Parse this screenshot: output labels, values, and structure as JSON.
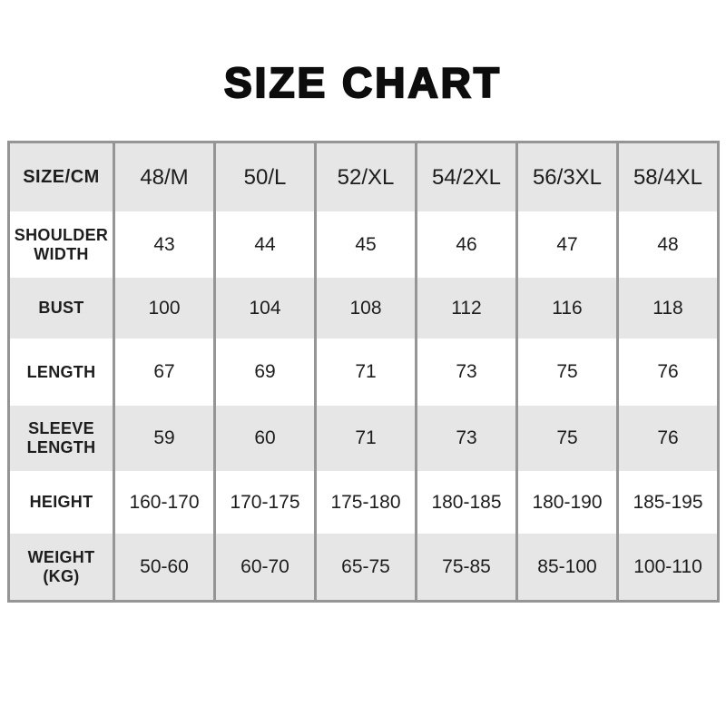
{
  "title": "SIZE CHART",
  "colors": {
    "stripe": "#e6e6e6",
    "border": "#959595",
    "text": "#1d1d1d",
    "title": "#0d0d0d"
  },
  "chart_data": {
    "type": "table",
    "title": "SIZE CHART",
    "unit": "CM",
    "columns": [
      "SIZE/CM",
      "48/M",
      "50/L",
      "52/XL",
      "54/2XL",
      "56/3XL",
      "58/4XL"
    ],
    "rows": [
      {
        "label": "SHOULDER WIDTH",
        "values": [
          "43",
          "44",
          "45",
          "46",
          "47",
          "48"
        ]
      },
      {
        "label": "BUST",
        "values": [
          "100",
          "104",
          "108",
          "112",
          "116",
          "118"
        ]
      },
      {
        "label": "LENGTH",
        "values": [
          "67",
          "69",
          "71",
          "73",
          "75",
          "76"
        ]
      },
      {
        "label": "SLEEVE LENGTH",
        "values": [
          "59",
          "60",
          "71",
          "73",
          "75",
          "76"
        ]
      },
      {
        "label": "HEIGHT",
        "values": [
          "160-170",
          "170-175",
          "175-180",
          "180-185",
          "180-190",
          "185-195"
        ]
      },
      {
        "label": "WEIGHT (KG)",
        "values": [
          "50-60",
          "60-70",
          "65-75",
          "75-85",
          "85-100",
          "100-110"
        ]
      }
    ]
  }
}
